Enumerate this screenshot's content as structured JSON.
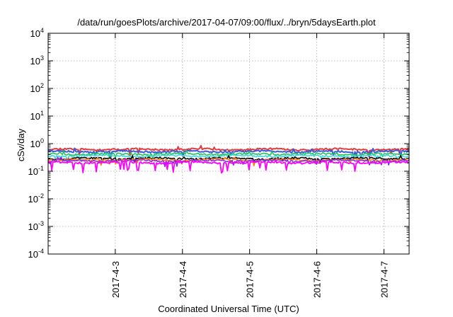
{
  "chart_data": {
    "type": "line",
    "title": "/data/run/goesPlots/archive/2017-04-07/09:00/flux/../bryn/5daysEarth.plot",
    "xlabel": "Coordinated Universal Time (UTC)",
    "ylabel": "cSv/day",
    "y_scale": "log",
    "ylim": [
      0.0001,
      10000
    ],
    "xlim": [
      "2017-04-02T00:00",
      "2017-04-07T09:00"
    ],
    "y_ticks": [
      {
        "value": 0.0001,
        "base": "10",
        "exp": "-4"
      },
      {
        "value": 0.001,
        "base": "10",
        "exp": "-3"
      },
      {
        "value": 0.01,
        "base": "10",
        "exp": "-2"
      },
      {
        "value": 0.1,
        "base": "10",
        "exp": "-1"
      },
      {
        "value": 1,
        "base": "10",
        "exp": "0"
      },
      {
        "value": 10,
        "base": "10",
        "exp": "1"
      },
      {
        "value": 100,
        "base": "10",
        "exp": "2"
      },
      {
        "value": 1000,
        "base": "10",
        "exp": "3"
      },
      {
        "value": 10000,
        "base": "10",
        "exp": "4"
      }
    ],
    "x_ticks": [
      {
        "value": "2017-04-03T00:00",
        "label": "2017-4-3"
      },
      {
        "value": "2017-04-04T00:00",
        "label": "2017-4-4"
      },
      {
        "value": "2017-04-05T00:00",
        "label": "2017-4-5"
      },
      {
        "value": "2017-04-06T00:00",
        "label": "2017-4-6"
      },
      {
        "value": "2017-04-07T00:00",
        "label": "2017-4-7"
      }
    ],
    "grid": true,
    "series": [
      {
        "color": "#e8383b",
        "base": 0.62,
        "width": 2.0,
        "dip_prob": 0.03,
        "dip_factor": 0.72,
        "seed": 11
      },
      {
        "color": "#3a5bd9",
        "base": 0.52,
        "width": 2.0,
        "dip_prob": 0.04,
        "dip_factor": 0.7,
        "seed": 23
      },
      {
        "color": "#22c25a",
        "base": 0.42,
        "width": 1.6,
        "dip_prob": 0.03,
        "dip_factor": 0.8,
        "seed": 37
      },
      {
        "color": "#3fd6d6",
        "base": 0.36,
        "width": 1.6,
        "dip_prob": 0.03,
        "dip_factor": 0.8,
        "seed": 41
      },
      {
        "color": "#000000",
        "base": 0.29,
        "width": 1.6,
        "dip_prob": 0.03,
        "dip_factor": 0.82,
        "seed": 53
      },
      {
        "color": "#ff7f0e",
        "base": 0.26,
        "width": 1.6,
        "dip_prob": 0.03,
        "dip_factor": 0.82,
        "seed": 59
      },
      {
        "color": "#8b2be2",
        "base": 0.24,
        "width": 1.6,
        "dip_prob": 0.03,
        "dip_factor": 0.82,
        "seed": 67
      },
      {
        "color": "#ff00ff",
        "base": 0.205,
        "width": 1.8,
        "dip_prob": 0.07,
        "dip_factor": 0.55,
        "seed": 71
      }
    ]
  }
}
